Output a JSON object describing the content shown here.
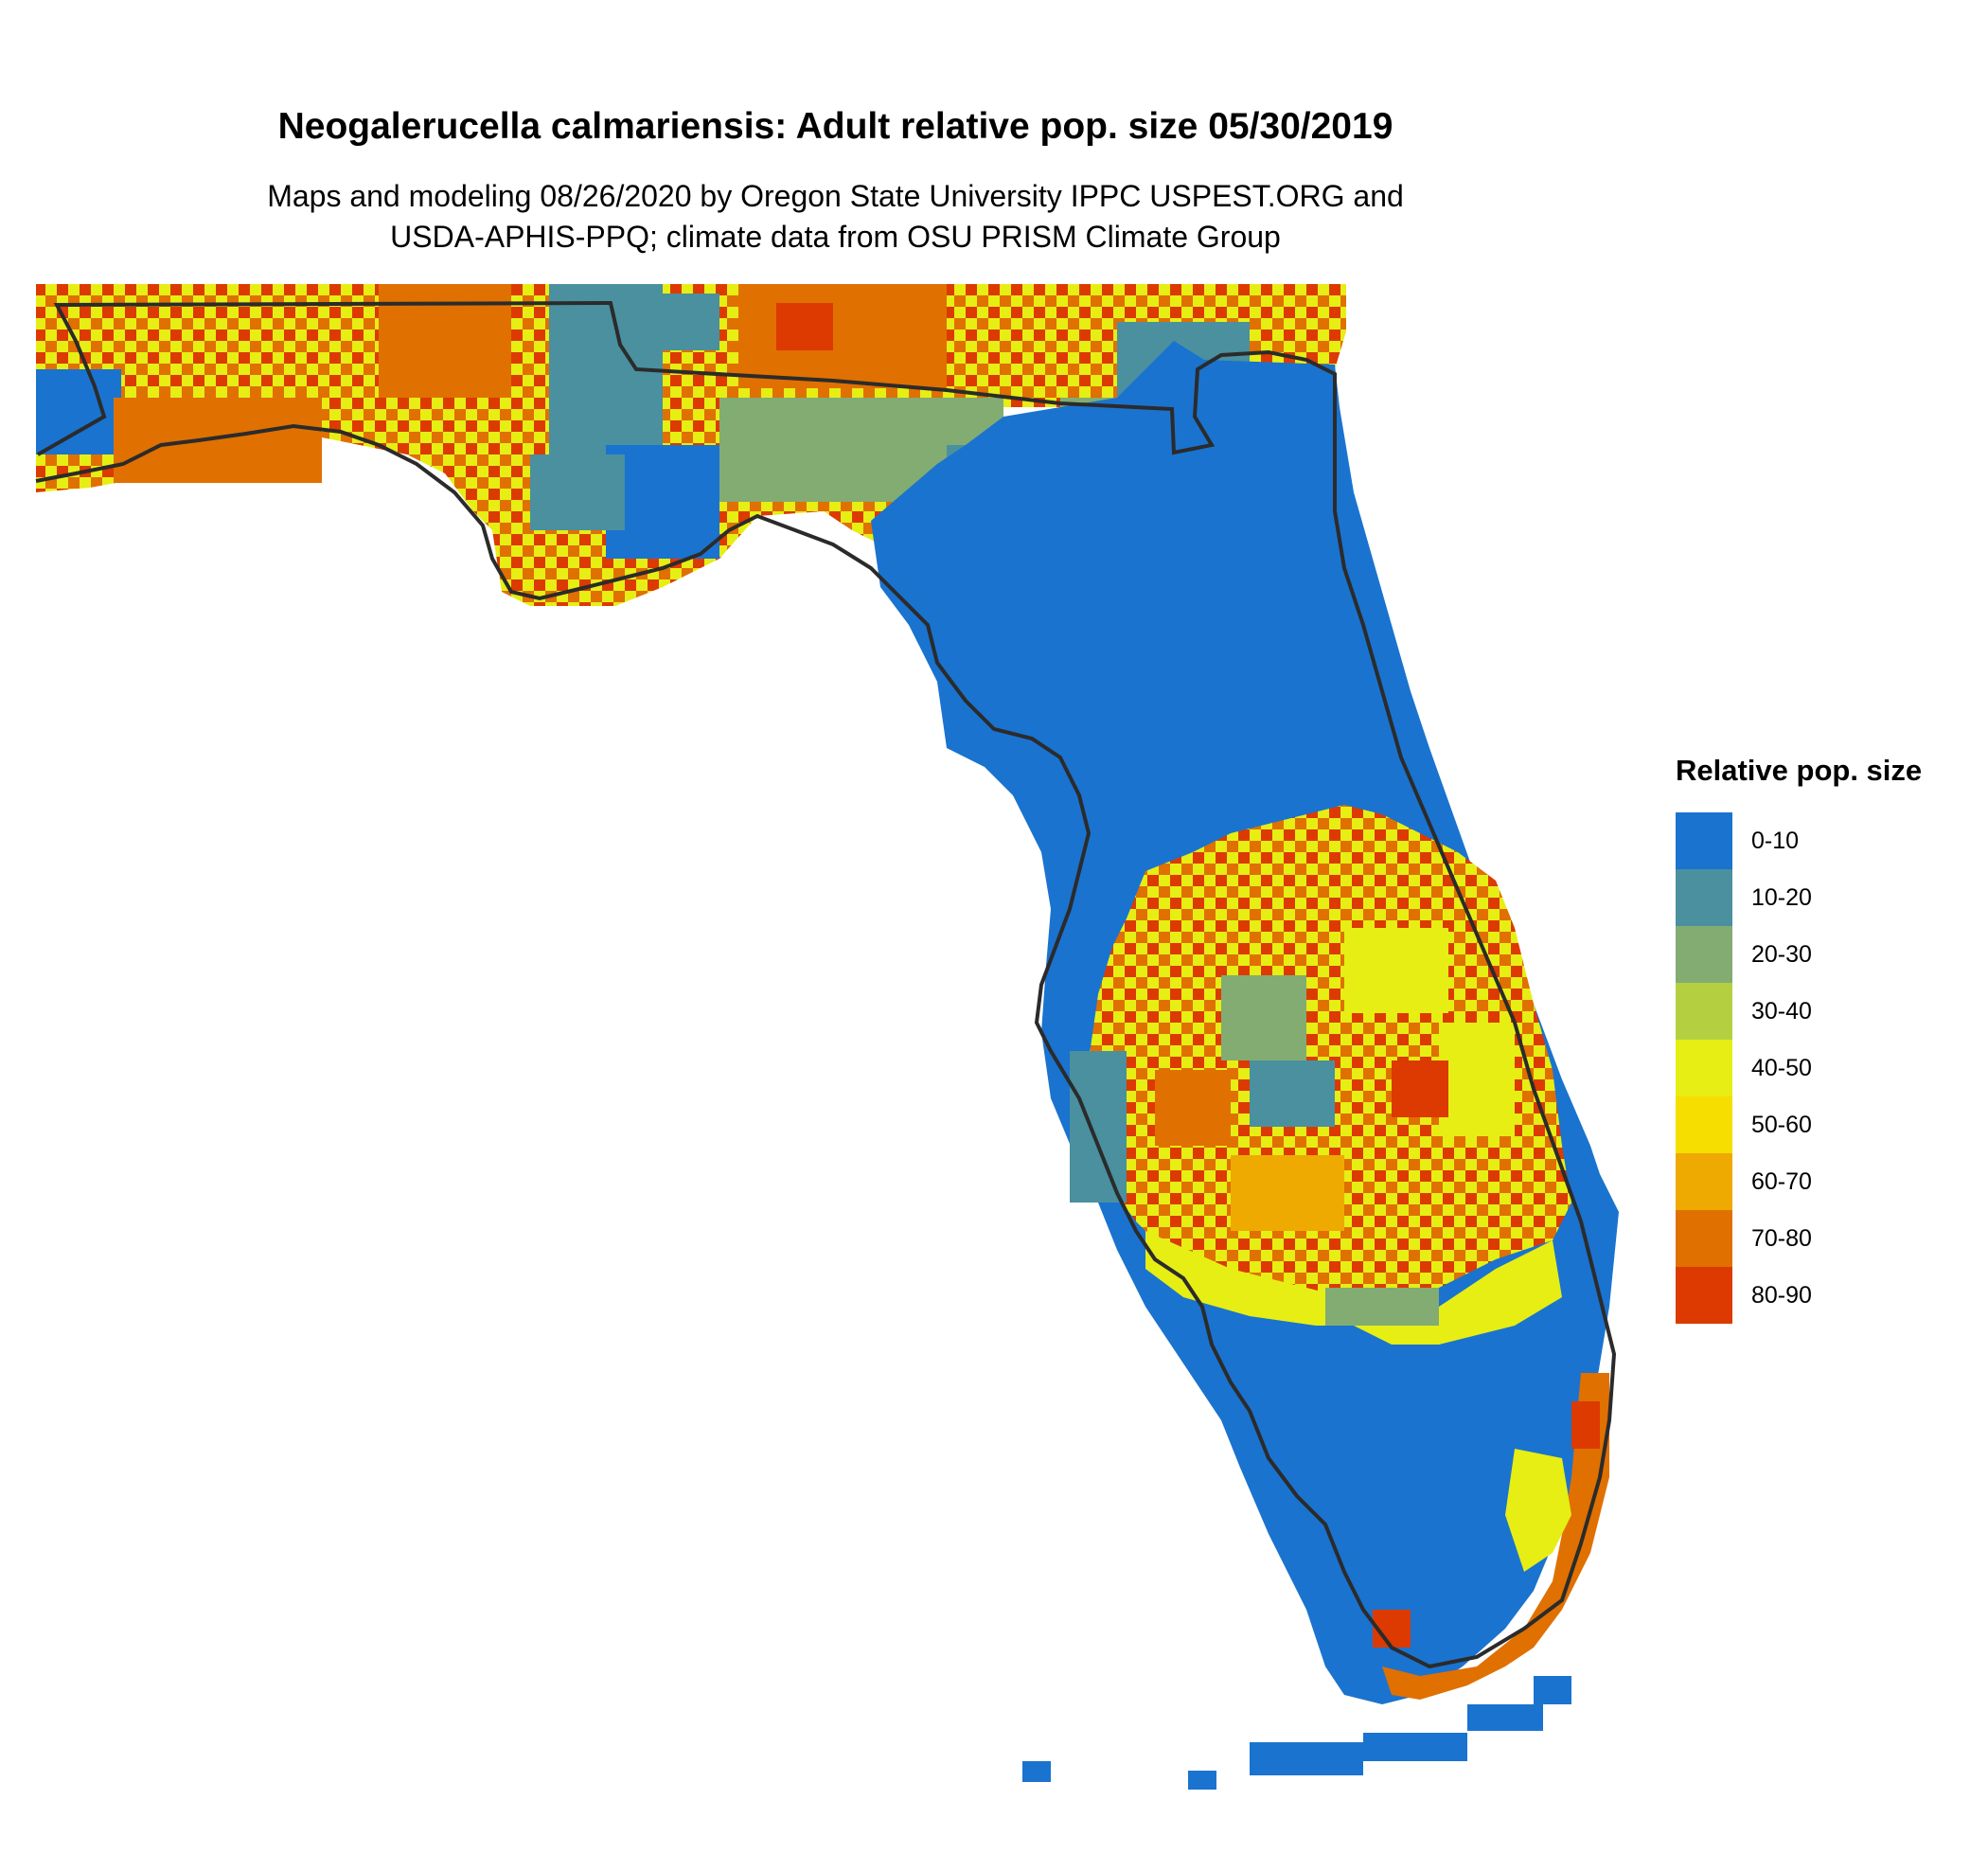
{
  "title": "Neogalerucella calmariensis: Adult relative pop. size 05/30/2019",
  "subtitle_line1": "Maps and modeling 08/26/2020 by Oregon State University IPPC USPEST.ORG and",
  "subtitle_line2": "USDA-APHIS-PPQ; climate data from OSU PRISM Climate Group",
  "legend": {
    "title": "Relative pop. size",
    "items": [
      {
        "label": "0-10",
        "color": "#1a73cf"
      },
      {
        "label": "10-20",
        "color": "#4a909f"
      },
      {
        "label": "20-30",
        "color": "#82ac72"
      },
      {
        "label": "30-40",
        "color": "#b4d040"
      },
      {
        "label": "40-50",
        "color": "#e6ee14"
      },
      {
        "label": "50-60",
        "color": "#f6de00"
      },
      {
        "label": "60-70",
        "color": "#eeaa00"
      },
      {
        "label": "70-80",
        "color": "#e07000"
      },
      {
        "label": "80-90",
        "color": "#dc3a00"
      }
    ]
  }
}
